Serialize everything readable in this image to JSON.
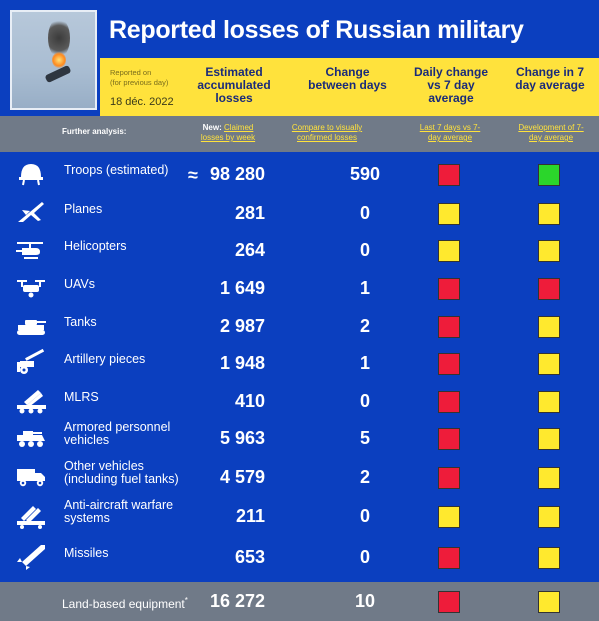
{
  "header": {
    "title": "Reported losses of Russian military",
    "reported_on": "Reported on",
    "for_previous_day": "(for previous day)",
    "date": "18 déc. 2022",
    "col_estimated": "Estimated accumulated losses",
    "col_change": "Change between days",
    "col_daily": "Daily change vs 7 day average",
    "col_7day": "Change in 7 day average"
  },
  "subheader": {
    "further_analysis": "Further analysis:",
    "new_prefix": "New:",
    "claimed_link": "Claimed losses by week",
    "compare_link": "Compare to visually confirmed losses",
    "last7_link": "Last 7 days vs 7-day average",
    "development_link": "Development of 7-day average"
  },
  "colors": {
    "red": "#ee1c3a",
    "yellow": "#ffe92e",
    "green": "#2bd62b"
  },
  "rows": [
    {
      "icon": "helmet-icon",
      "label": "Troops (estimated)",
      "approx": "≈",
      "value": "98 280",
      "change": "590",
      "daily": "red",
      "trend": "green"
    },
    {
      "icon": "plane-icon",
      "label": "Planes",
      "value": "281",
      "change": "0",
      "daily": "yellow",
      "trend": "yellow"
    },
    {
      "icon": "helicopter-icon",
      "label": "Helicopters",
      "value": "264",
      "change": "0",
      "daily": "yellow",
      "trend": "yellow"
    },
    {
      "icon": "drone-icon",
      "label": "UAVs",
      "value": "1 649",
      "change": "1",
      "daily": "red",
      "trend": "red"
    },
    {
      "icon": "tank-icon",
      "label": "Tanks",
      "value": "2 987",
      "change": "2",
      "daily": "red",
      "trend": "yellow"
    },
    {
      "icon": "artillery-icon",
      "label": "Artillery pieces",
      "value": "1 948",
      "change": "1",
      "daily": "red",
      "trend": "yellow"
    },
    {
      "icon": "mlrs-icon",
      "label": "MLRS",
      "value": "410",
      "change": "0",
      "daily": "red",
      "trend": "yellow"
    },
    {
      "icon": "apc-icon",
      "label": "Armored personnel vehicles",
      "value": "5 963",
      "change": "5",
      "daily": "red",
      "trend": "yellow"
    },
    {
      "icon": "truck-icon",
      "label": "Other vehicles (including fuel tanks)",
      "value": "4 579",
      "change": "2",
      "daily": "red",
      "trend": "yellow"
    },
    {
      "icon": "anti-aircraft-icon",
      "label": "Anti-aircraft warfare systems",
      "value": "211",
      "change": "0",
      "daily": "yellow",
      "trend": "yellow"
    },
    {
      "icon": "missile-icon",
      "label": "Missiles",
      "value": "653",
      "change": "0",
      "daily": "red",
      "trend": "yellow"
    }
  ],
  "footer": {
    "label": "Land-based equipment",
    "asterisk": "*",
    "value": "16 272",
    "change": "10",
    "daily": "red",
    "trend": "yellow"
  }
}
